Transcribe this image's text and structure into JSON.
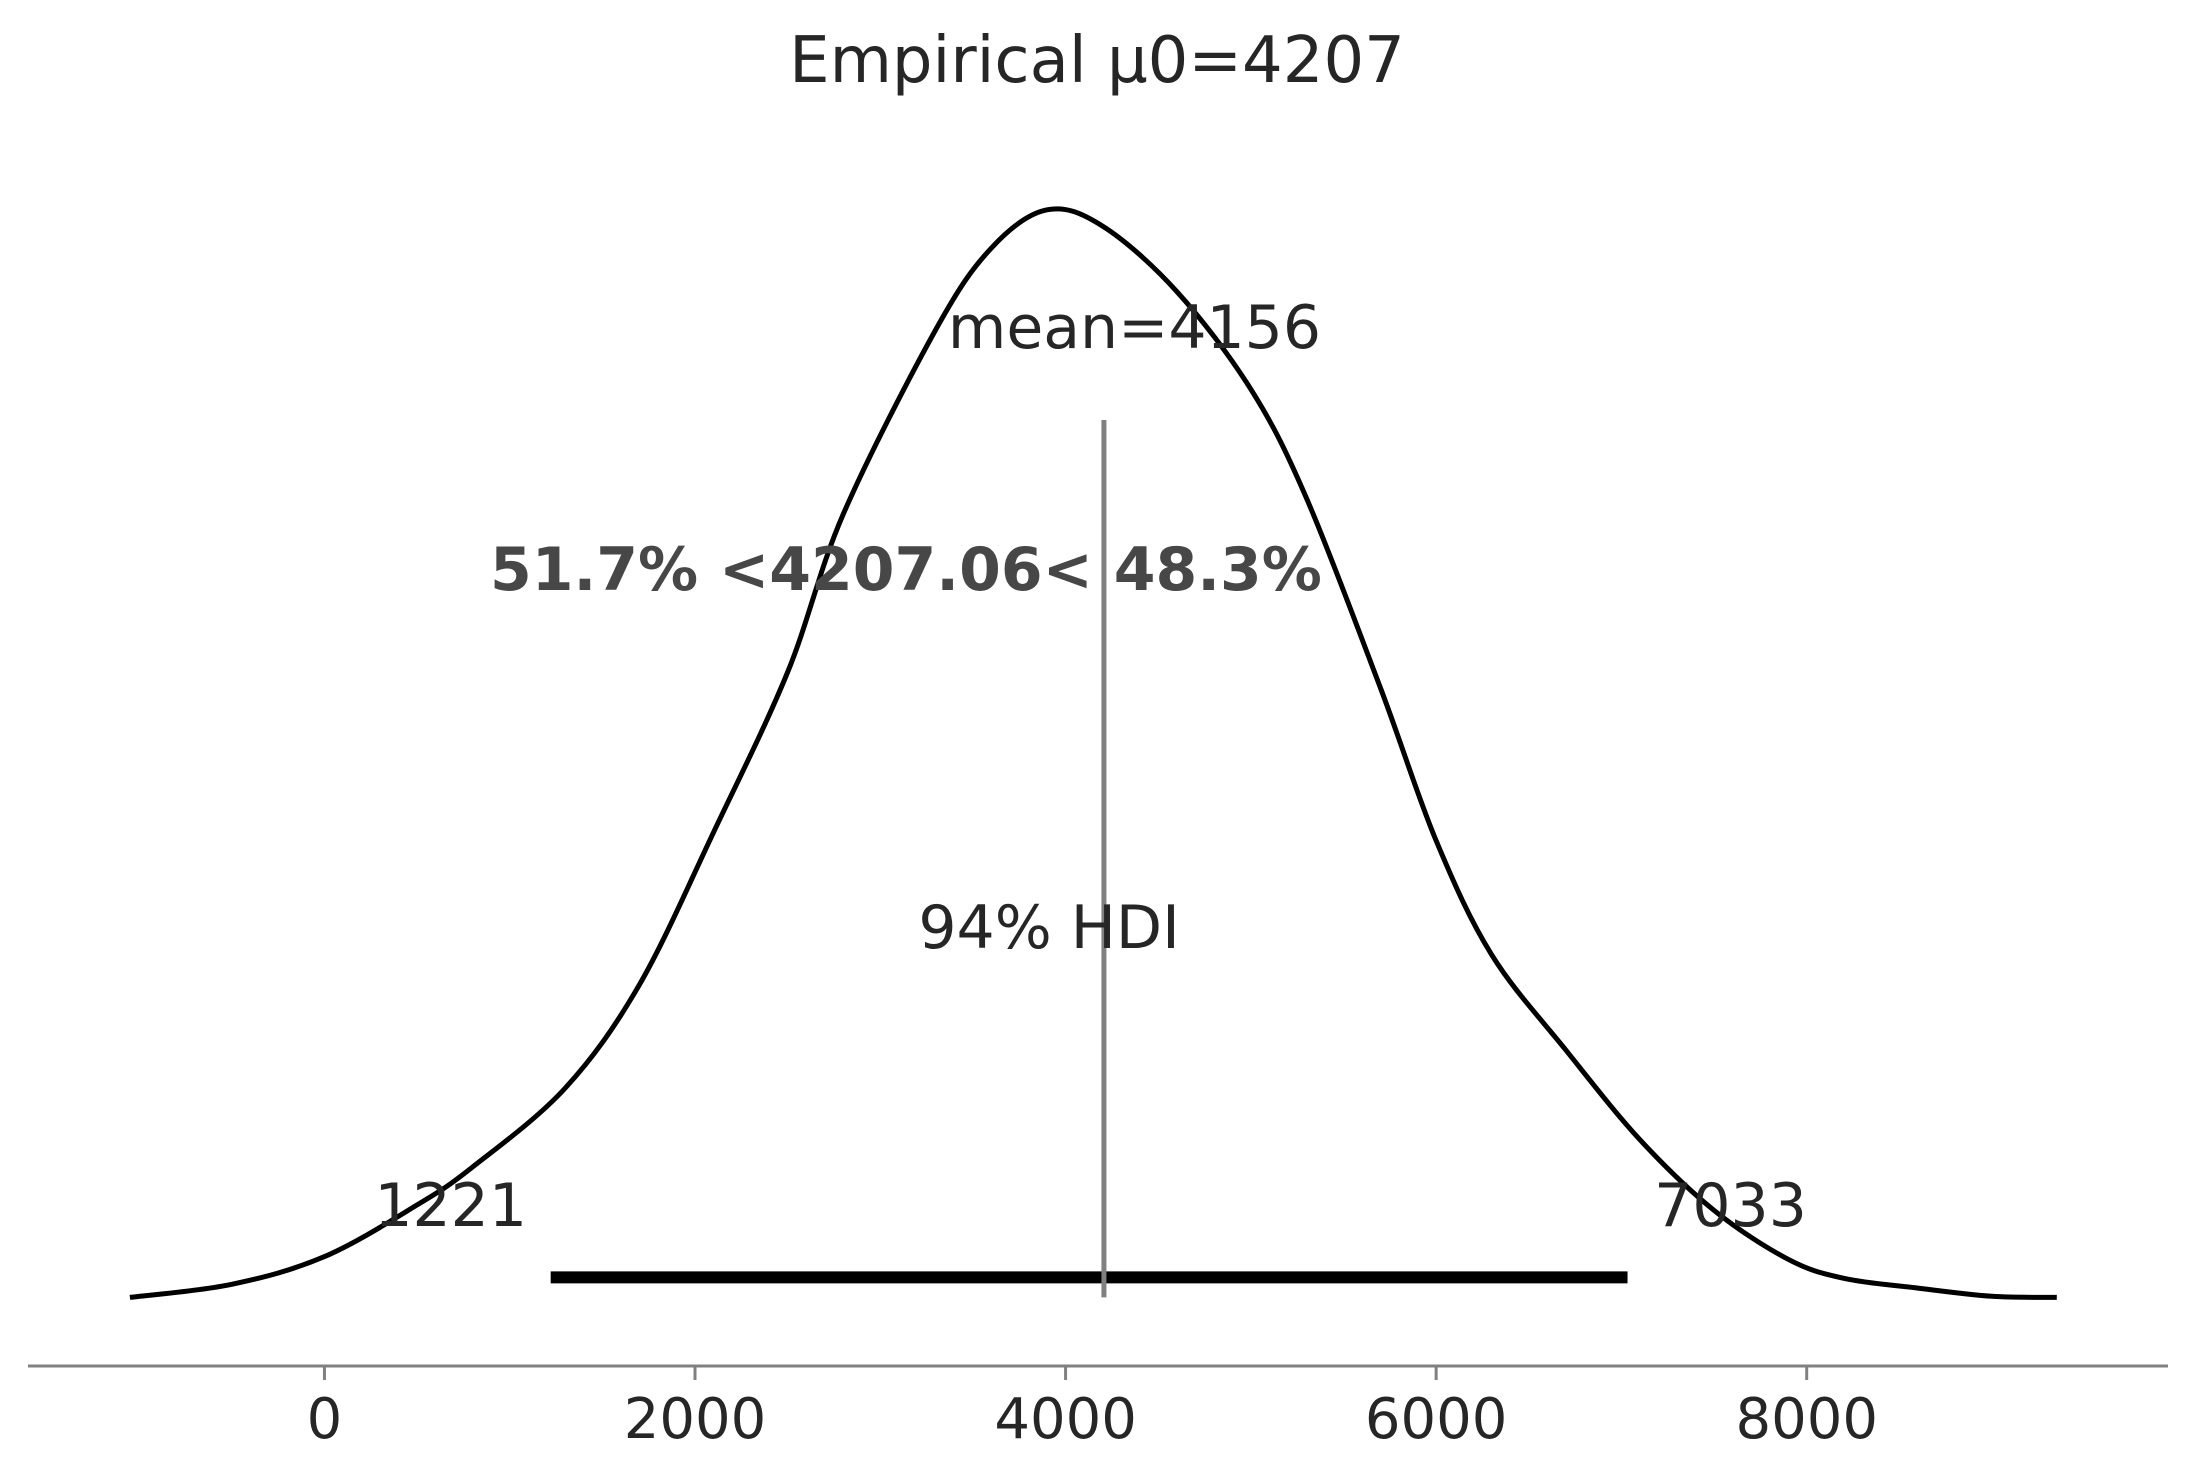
{
  "chart_data": {
    "type": "line",
    "title": "Empirical μ0=4207",
    "xlabel": "",
    "ylabel": "",
    "xlim": [
      -1600,
      9950
    ],
    "ylim": [
      -6e-06,
      0.000211
    ],
    "x_ticks": [
      0,
      2000,
      4000,
      6000,
      8000
    ],
    "grid": false,
    "series": [
      {
        "x": [
          -1050,
          -500,
          0,
          500,
          800,
          1300,
          1700,
          2100,
          2500,
          2800,
          3300,
          3600,
          3900,
          4200,
          4600,
          5000,
          5300,
          5700,
          6000,
          6300,
          6700,
          7100,
          7500,
          7900,
          8200,
          8600,
          9000,
          9350
        ],
        "y": [
          0.0,
          2.4e-06,
          7.5e-06,
          1.7e-05,
          2.4e-05,
          3.85e-05,
          5.75e-05,
          8.55e-05,
          0.000115,
          0.000144,
          0.000178,
          0.000193,
          0.0002,
          0.000197,
          0.000185,
          0.000167,
          0.000147,
          0.000112,
          8.4e-05,
          6.3e-05,
          4.55e-05,
          2.9e-05,
          1.6e-05,
          7e-06,
          3.5e-06,
          1.7e-06,
          2e-07,
          0.0
        ]
      }
    ],
    "hdi": {
      "low": 1221,
      "high": 7033,
      "label": "94% HDI",
      "low_label": "1221",
      "high_label": "7033"
    },
    "mean": {
      "value": 4156,
      "label": "mean=4156"
    },
    "reference": {
      "value": 4207.06,
      "label": "51.7% <4207.06< 48.3%"
    }
  }
}
